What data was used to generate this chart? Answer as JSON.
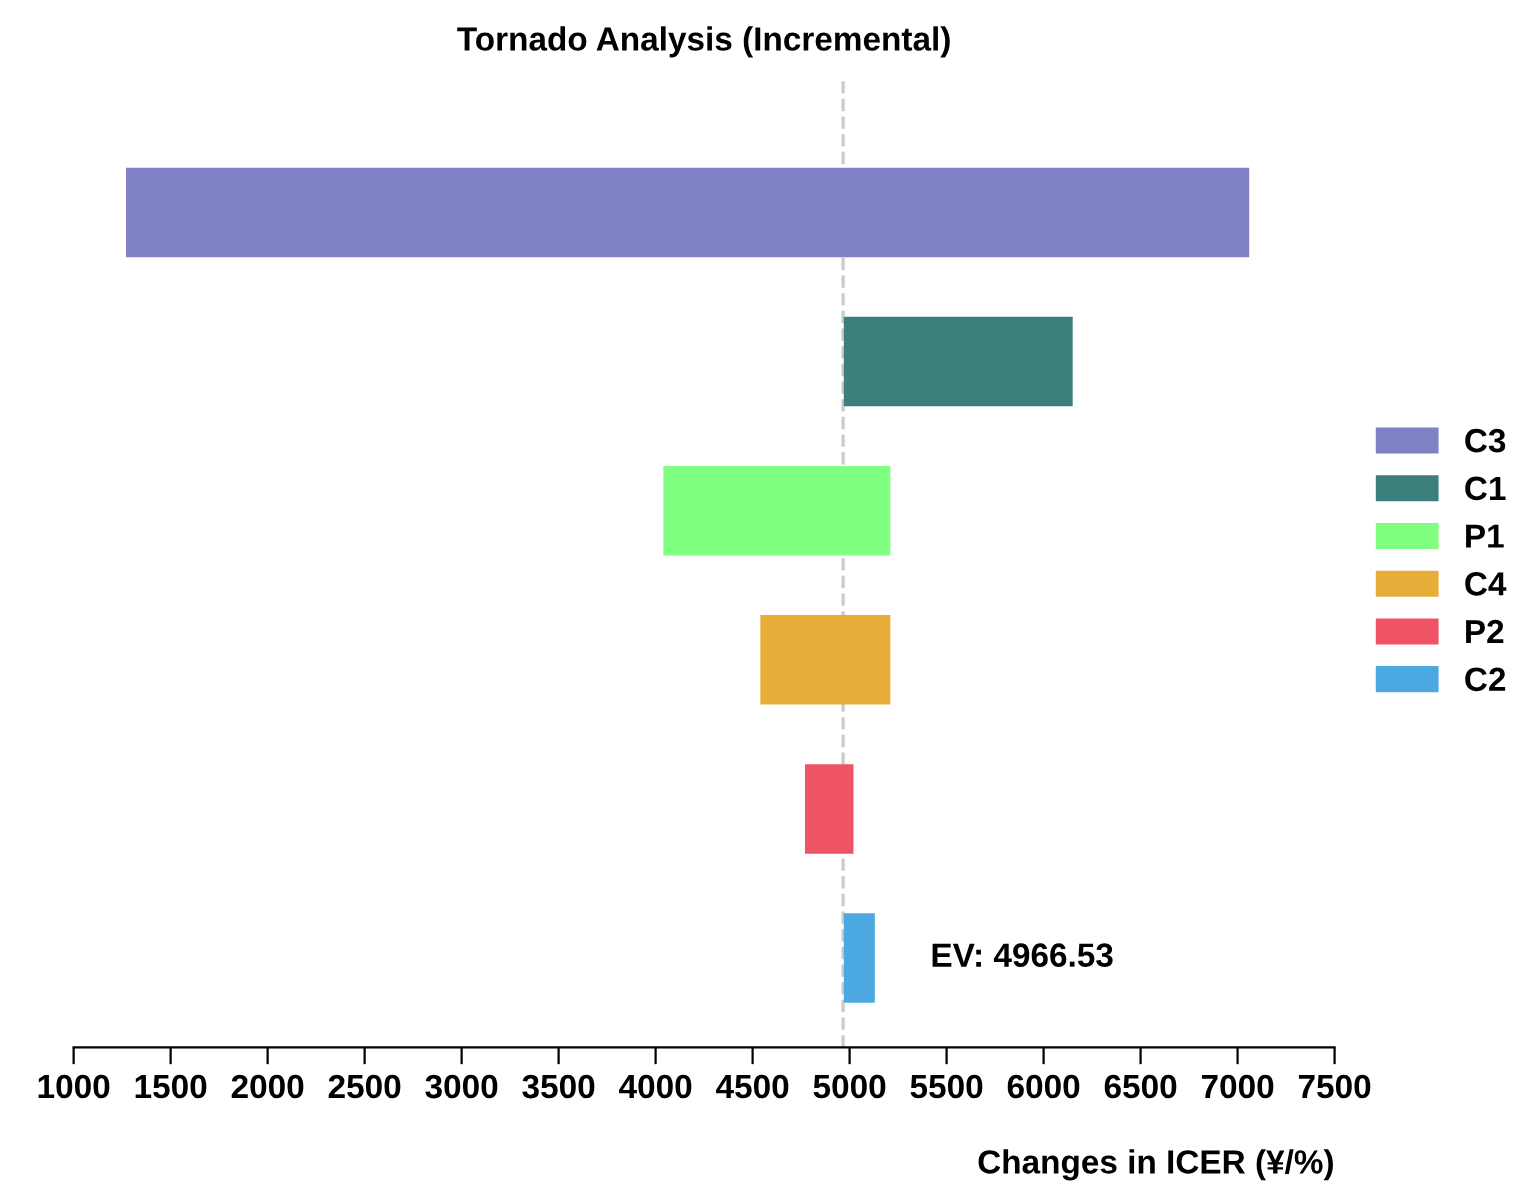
{
  "chart_data": {
    "type": "bar",
    "orientation": "horizontal",
    "title": "Tornado Analysis (Incremental)",
    "xlabel": "Changes in ICER (¥/%)",
    "categories": [
      null,
      null,
      null,
      null,
      null,
      null
    ],
    "series": [
      {
        "name": "C3",
        "color": "#8080c4",
        "values": [
          5790,
          null,
          null,
          null,
          null,
          null
        ],
        "base": [
          1270,
          null,
          null,
          null,
          null,
          null
        ]
      },
      {
        "name": "C1",
        "color": "#3d7f7d",
        "values": [
          null,
          1180,
          null,
          null,
          null,
          null
        ],
        "base": [
          null,
          4970,
          null,
          null,
          null,
          null
        ]
      },
      {
        "name": "P1",
        "color": "#80ff80",
        "values": [
          null,
          null,
          1170,
          null,
          null,
          null
        ],
        "base": [
          null,
          null,
          4040,
          null,
          null,
          null
        ]
      },
      {
        "name": "C4",
        "color": "#e8ad38",
        "values": [
          null,
          null,
          null,
          670,
          null,
          null
        ],
        "base": [
          null,
          null,
          null,
          4540,
          null,
          null
        ]
      },
      {
        "name": "P2",
        "color": "#ef5466",
        "values": [
          null,
          null,
          null,
          null,
          250,
          null
        ],
        "base": [
          null,
          null,
          null,
          null,
          4770,
          null
        ]
      },
      {
        "name": "C2",
        "color": "#4ca8e0",
        "values": [
          null,
          null,
          null,
          null,
          null,
          160
        ],
        "base": [
          null,
          null,
          null,
          null,
          null,
          4970
        ]
      }
    ],
    "xlim": [
      1000,
      7500
    ],
    "xticks": [
      1000,
      1500,
      2000,
      2500,
      3000,
      3500,
      4000,
      4500,
      5000,
      5500,
      6000,
      6500,
      7000,
      7500
    ],
    "ref_lines": [
      {
        "axis": "x",
        "value": 4966.53,
        "label": "EV: 4966.53",
        "color": "#cccccc",
        "line_style": "dashed"
      }
    ],
    "tick_labels": "x",
    "grid": false,
    "legend": "right"
  }
}
